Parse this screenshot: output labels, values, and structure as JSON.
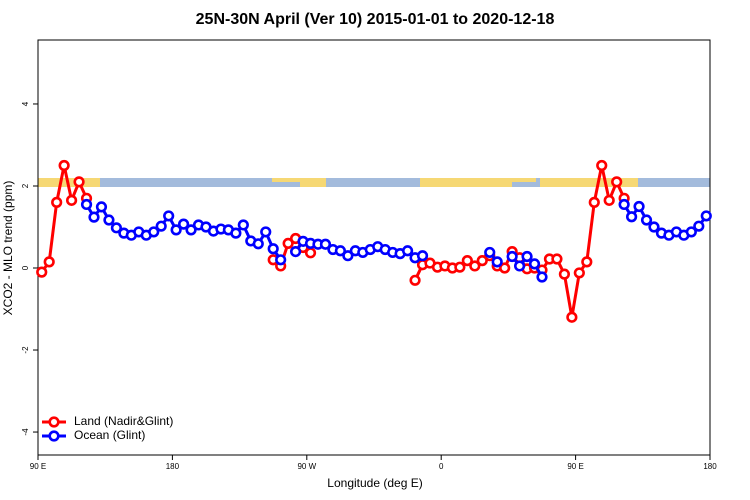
{
  "chart_data": {
    "type": "line",
    "title": "25N-30N April (Ver 10)   2015-01-01 to 2020-12-18",
    "x_label": "Longitude (deg E)",
    "y_label": "XCO2 - MLO trend (ppm)",
    "x": [
      92.5,
      97.5,
      102.5,
      107.5,
      112.5,
      117.5,
      122.5,
      127.5,
      132.5,
      137.5,
      142.5,
      147.5,
      152.5,
      157.5,
      162.5,
      167.5,
      172.5,
      177.5,
      182.5,
      187.5,
      192.5,
      197.5,
      202.5,
      207.5,
      212.5,
      217.5,
      222.5,
      227.5,
      232.5,
      237.5,
      242.5,
      247.5,
      252.5,
      257.5,
      262.5,
      267.5,
      272.5,
      277.5,
      282.5,
      287.5,
      292.5,
      297.5,
      302.5,
      307.5,
      312.5,
      317.5,
      322.5,
      327.5,
      332.5,
      337.5,
      342.5,
      347.5,
      352.5,
      357.5,
      362.5,
      367.5,
      372.5,
      377.5,
      382.5,
      387.5,
      392.5,
      397.5,
      402.5,
      407.5,
      412.5,
      417.5,
      422.5,
      427.5,
      432.5,
      437.5,
      442.5,
      447.5,
      452.5,
      457.5,
      462.5,
      467.5,
      472.5,
      477.5,
      482.5,
      487.5,
      492.5,
      497.5,
      502.5,
      507.5,
      512.5,
      517.5,
      522.5,
      527.5,
      532.5,
      537.5
    ],
    "series": [
      {
        "name": "Land (Nadir&Glint)",
        "color": "#ff0000",
        "values": [
          -0.1,
          0.15,
          1.6,
          2.5,
          1.65,
          2.1,
          1.7,
          null,
          null,
          null,
          null,
          null,
          null,
          null,
          null,
          null,
          null,
          null,
          null,
          null,
          null,
          null,
          null,
          null,
          null,
          null,
          null,
          null,
          null,
          null,
          null,
          0.2,
          0.05,
          0.6,
          0.72,
          0.5,
          0.37,
          null,
          null,
          null,
          null,
          null,
          null,
          null,
          null,
          null,
          null,
          null,
          null,
          null,
          -0.3,
          0.08,
          0.12,
          0.02,
          0.05,
          0,
          0.02,
          0.18,
          0.05,
          0.18,
          0.3,
          0.05,
          0,
          0.4,
          0.25,
          -0.02,
          0,
          -0.05,
          0.22,
          0.22,
          -0.15,
          -1.2,
          -0.12,
          0.15,
          1.6,
          2.5,
          1.65,
          2.1,
          1.7,
          null,
          null,
          null,
          null,
          null,
          null,
          null,
          null,
          null,
          null,
          null
        ]
      },
      {
        "name": "Ocean (Glint)",
        "color": "#0000ff",
        "values": [
          null,
          null,
          null,
          null,
          null,
          null,
          1.55,
          1.24,
          1.49,
          1.17,
          0.98,
          0.85,
          0.8,
          0.88,
          0.8,
          0.88,
          1.02,
          1.27,
          0.93,
          1.07,
          0.93,
          1.05,
          1.0,
          0.9,
          0.95,
          0.93,
          0.85,
          1.05,
          0.66,
          0.59,
          0.88,
          0.47,
          0.2,
          null,
          0.4,
          0.65,
          0.6,
          0.58,
          0.58,
          0.45,
          0.42,
          0.3,
          0.42,
          0.38,
          0.45,
          0.52,
          0.45,
          0.38,
          0.35,
          0.42,
          0.25,
          0.3,
          null,
          null,
          null,
          null,
          null,
          null,
          null,
          null,
          0.38,
          0.15,
          null,
          0.28,
          0.05,
          0.28,
          0.1,
          -0.22,
          null,
          null,
          null,
          null,
          null,
          null,
          null,
          null,
          null,
          null,
          1.55,
          1.25,
          1.5,
          1.17,
          1.0,
          0.85,
          0.8,
          0.88,
          0.8,
          0.88,
          1.02,
          1.27
        ]
      }
    ],
    "xlim": [
      90,
      540
    ],
    "xticks": [
      {
        "value": 90,
        "label": "90 E"
      },
      {
        "value": 180,
        "label": "180"
      },
      {
        "value": 270,
        "label": "90 W"
      },
      {
        "value": 360,
        "label": "0"
      },
      {
        "value": 450,
        "label": "90 E"
      },
      {
        "value": 540,
        "label": "180"
      }
    ],
    "ylim": [
      -4.56,
      5.56
    ],
    "yticks": [
      -4,
      -2,
      0,
      2,
      4
    ],
    "legend": "bottom-left"
  }
}
